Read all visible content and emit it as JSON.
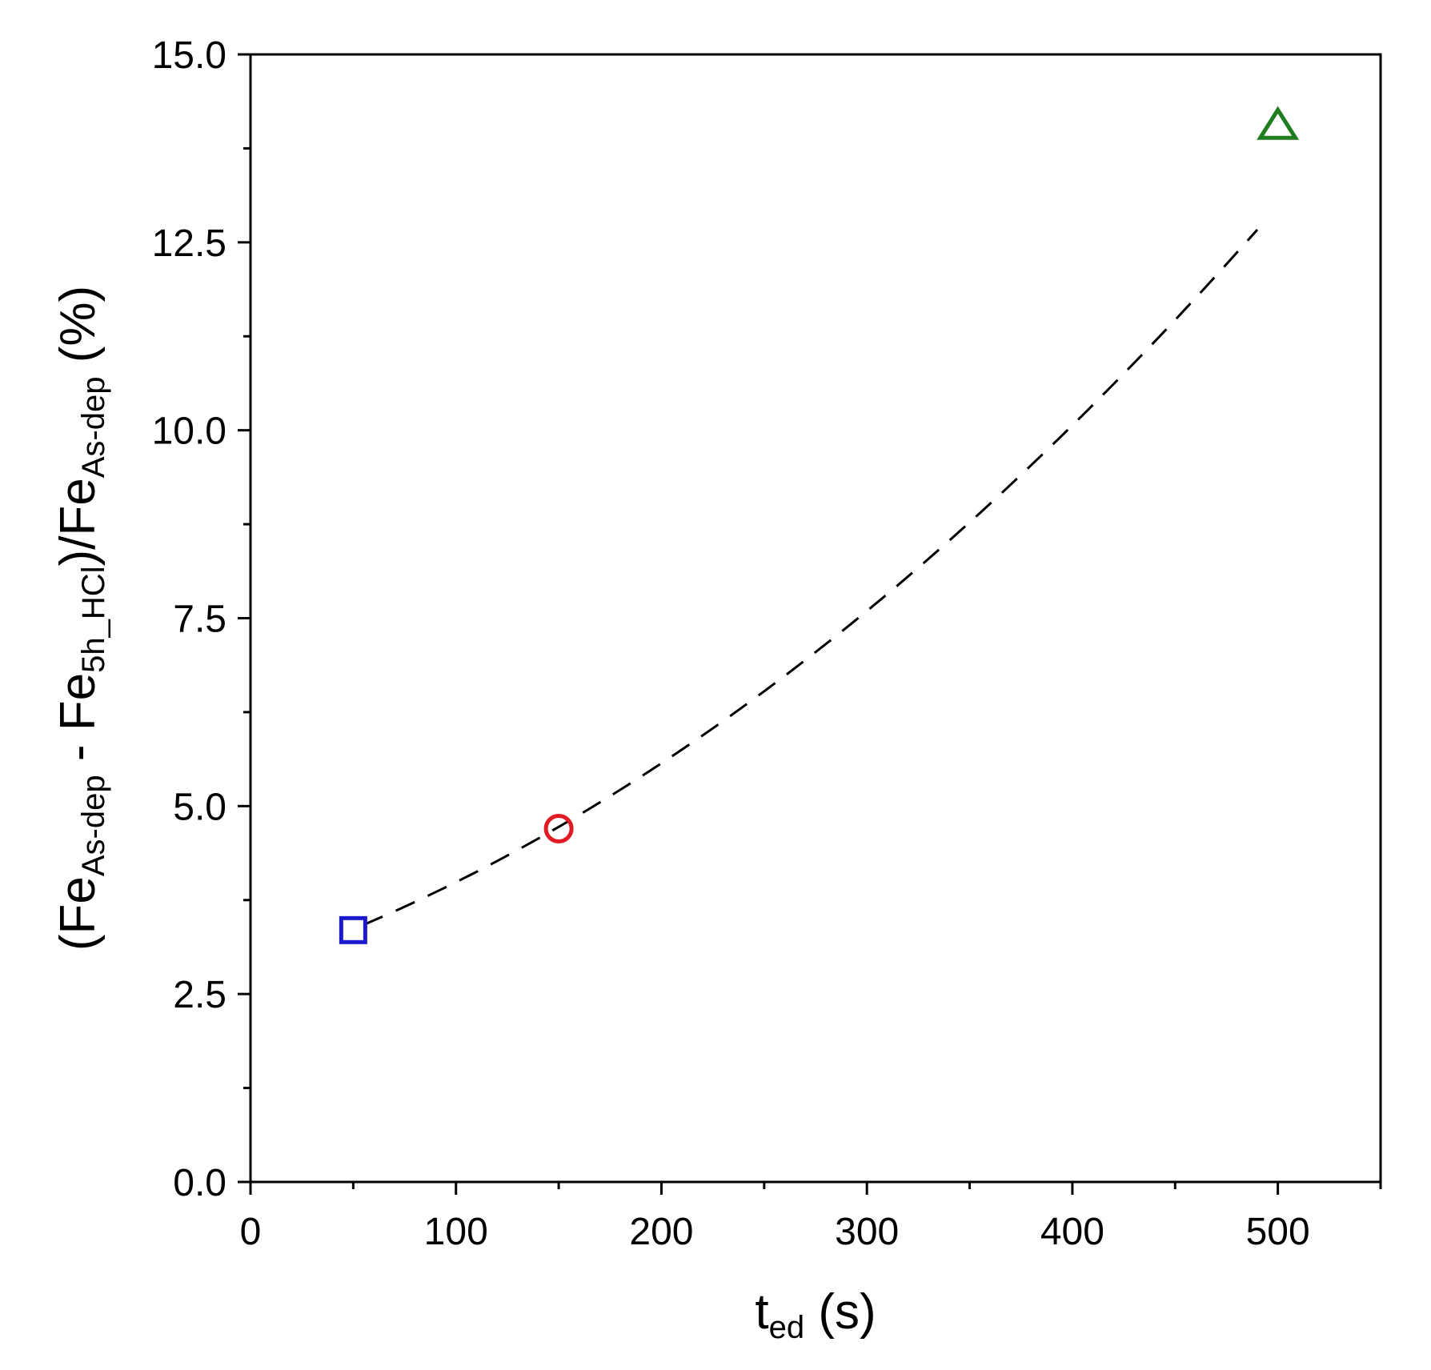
{
  "chart_data": {
    "type": "scatter",
    "title": "",
    "xlabel": {
      "parts": [
        {
          "text": "t",
          "sub": false
        },
        {
          "text": "ed",
          "sub": true
        },
        {
          "text": " (s)",
          "sub": false
        }
      ]
    },
    "ylabel": {
      "parts": [
        {
          "text": "(Fe",
          "sub": false
        },
        {
          "text": "As-dep",
          "sub": true
        },
        {
          "text": " - Fe",
          "sub": false
        },
        {
          "text": "5h_HCl",
          "sub": true
        },
        {
          "text": ")/Fe",
          "sub": false
        },
        {
          "text": "As-dep",
          "sub": true
        },
        {
          "text": " (%)",
          "sub": false
        }
      ]
    },
    "xlim": [
      0,
      550
    ],
    "ylim": [
      0,
      15
    ],
    "x_ticks": [
      0,
      100,
      200,
      300,
      400,
      500
    ],
    "x_tick_labels": [
      "0",
      "100",
      "200",
      "300",
      "400",
      "500"
    ],
    "x_minor_ticks": [
      50,
      150,
      250,
      350,
      450
    ],
    "y_ticks": [
      0,
      2.5,
      5,
      7.5,
      10,
      12.5,
      15
    ],
    "y_tick_labels": [
      "0.0",
      "2.5",
      "5.0",
      "7.5",
      "10.0",
      "12.5",
      "15.0"
    ],
    "y_minor_ticks": [
      1.25,
      3.75,
      6.25,
      8.75,
      11.25,
      13.75
    ],
    "grid": false,
    "legend": "none",
    "points": [
      {
        "x": 50,
        "y": 3.35,
        "marker": "square",
        "color": "#1a1acc"
      },
      {
        "x": 150,
        "y": 4.7,
        "marker": "circle",
        "color": "#e01b24"
      },
      {
        "x": 500,
        "y": 14.05,
        "marker": "triangle",
        "color": "#1e7d1e"
      }
    ],
    "fit_line": {
      "style": "dashed",
      "color": "#000000",
      "x_range": [
        55,
        490
      ],
      "quadratic": {
        "a": 2.22e-05,
        "b": 0.00916,
        "c": 2.85
      }
    }
  }
}
